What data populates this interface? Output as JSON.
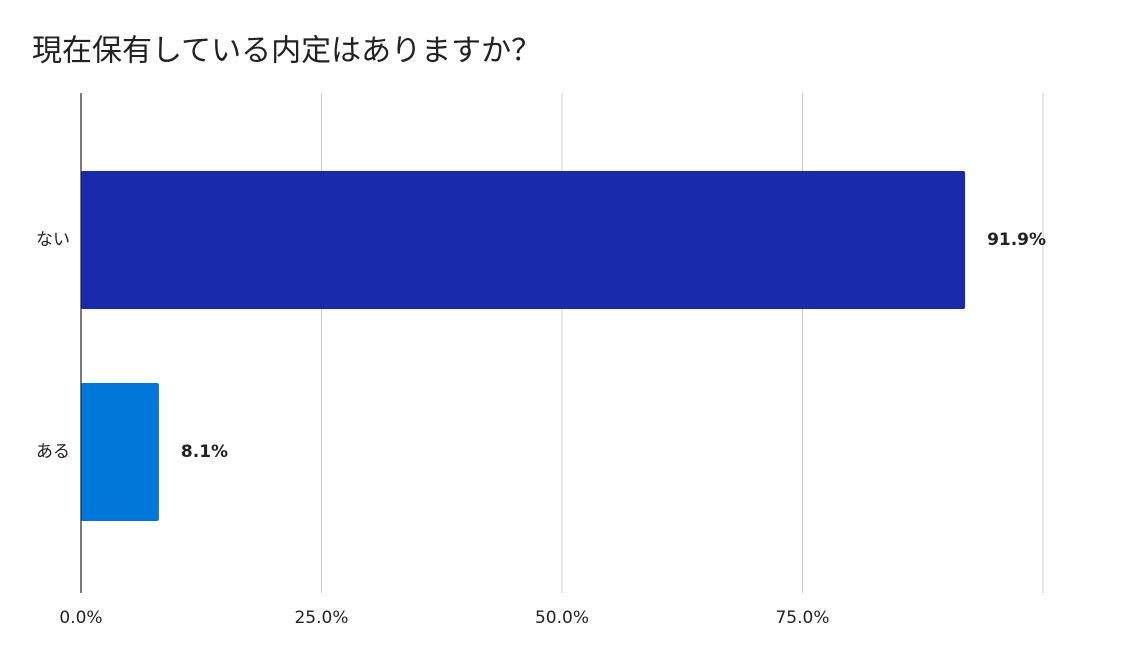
{
  "chart_data": {
    "type": "hbar",
    "title": "現在保有している内定はありますか？",
    "categories": [
      "ない",
      "ある"
    ],
    "values": [
      91.9,
      8.1
    ],
    "value_labels": [
      "91.9%",
      "8.1%"
    ],
    "colors": [
      "#1a2aad",
      "#0077d9"
    ],
    "xlim": [
      0,
      100
    ],
    "xticks": [
      {
        "value": 0,
        "label": "0.0%"
      },
      {
        "value": 25,
        "label": "25.0%"
      },
      {
        "value": 50,
        "label": "50.0%"
      },
      {
        "value": 75,
        "label": "75.0%"
      }
    ],
    "grid": true
  }
}
